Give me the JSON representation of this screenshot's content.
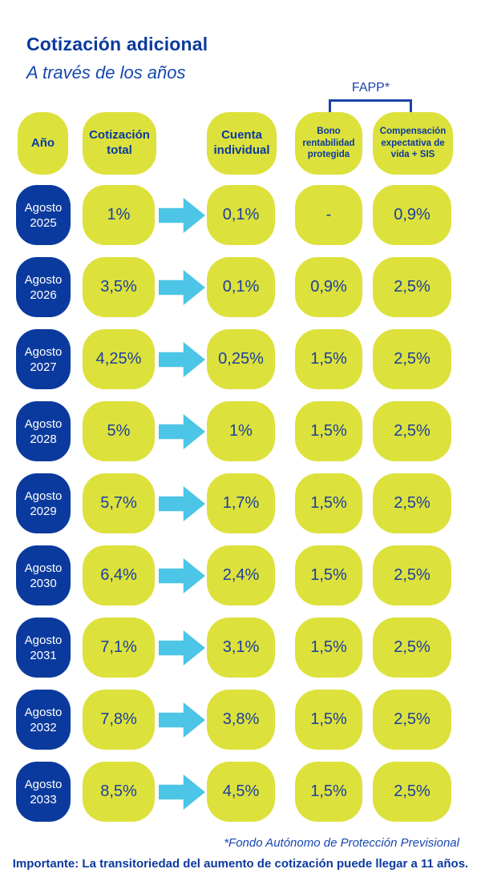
{
  "page": {
    "title": "Cotización adicional",
    "subtitle": "A través de los años",
    "fapp_label": "FAPP*",
    "footnote": "*Fondo Autónomo de Protección Previsional",
    "importante": "Importante: La transitoriedad del aumento de cotización puede llegar a 11 años."
  },
  "colors": {
    "brand_blue": "#0b3a9e",
    "value_blue": "#1a3fa0",
    "italic_blue": "#1747b0",
    "bracket_blue": "#1b43a8",
    "pill_yellow": "#dde13b",
    "arrow_cyan": "#4cc5e6",
    "year_text": "#ffffff",
    "background": "#ffffff"
  },
  "table": {
    "headers": [
      {
        "id": "ano",
        "label": "Año"
      },
      {
        "id": "cotizacion-total",
        "label": "Cotización total"
      },
      {
        "id": "cuenta-individual",
        "label": "Cuenta individual"
      },
      {
        "id": "bono-rentabilidad-protegida",
        "label": "Bono rentabilidad protegida"
      },
      {
        "id": "compensacion-expectativa",
        "label": "Compensación expectativa de vida + SIS"
      }
    ],
    "rows": [
      {
        "month": "Agosto",
        "year": "2025",
        "total": "1%",
        "cuenta": "0,1%",
        "bono": "-",
        "compensacion": "0,9%"
      },
      {
        "month": "Agosto",
        "year": "2026",
        "total": "3,5%",
        "cuenta": "0,1%",
        "bono": "0,9%",
        "compensacion": "2,5%"
      },
      {
        "month": "Agosto",
        "year": "2027",
        "total": "4,25%",
        "cuenta": "0,25%",
        "bono": "1,5%",
        "compensacion": "2,5%"
      },
      {
        "month": "Agosto",
        "year": "2028",
        "total": "5%",
        "cuenta": "1%",
        "bono": "1,5%",
        "compensacion": "2,5%"
      },
      {
        "month": "Agosto",
        "year": "2029",
        "total": "5,7%",
        "cuenta": "1,7%",
        "bono": "1,5%",
        "compensacion": "2,5%"
      },
      {
        "month": "Agosto",
        "year": "2030",
        "total": "6,4%",
        "cuenta": "2,4%",
        "bono": "1,5%",
        "compensacion": "2,5%"
      },
      {
        "month": "Agosto",
        "year": "2031",
        "total": "7,1%",
        "cuenta": "3,1%",
        "bono": "1,5%",
        "compensacion": "2,5%"
      },
      {
        "month": "Agosto",
        "year": "2032",
        "total": "7,8%",
        "cuenta": "3,8%",
        "bono": "1,5%",
        "compensacion": "2,5%"
      },
      {
        "month": "Agosto",
        "year": "2033",
        "total": "8,5%",
        "cuenta": "4,5%",
        "bono": "1,5%",
        "compensacion": "2,5%"
      }
    ]
  },
  "chart_data": {
    "type": "table",
    "title": "Cotización adicional",
    "subtitle": "A través de los años",
    "columns": [
      "Año",
      "Cotización total",
      "Cuenta individual",
      "Bono rentabilidad protegida (FAPP*)",
      "Compensación expectativa de vida + SIS (FAPP*)"
    ],
    "rows": [
      [
        "Agosto 2025",
        "1%",
        "0,1%",
        "-",
        "0,9%"
      ],
      [
        "Agosto 2026",
        "3,5%",
        "0,1%",
        "0,9%",
        "2,5%"
      ],
      [
        "Agosto 2027",
        "4,25%",
        "0,25%",
        "1,5%",
        "2,5%"
      ],
      [
        "Agosto 2028",
        "5%",
        "1%",
        "1,5%",
        "2,5%"
      ],
      [
        "Agosto 2029",
        "5,7%",
        "1,7%",
        "1,5%",
        "2,5%"
      ],
      [
        "Agosto 2030",
        "6,4%",
        "2,4%",
        "1,5%",
        "2,5%"
      ],
      [
        "Agosto 2031",
        "7,1%",
        "3,1%",
        "1,5%",
        "2,5%"
      ],
      [
        "Agosto 2032",
        "7,8%",
        "3,8%",
        "1,5%",
        "2,5%"
      ],
      [
        "Agosto 2033",
        "8,5%",
        "4,5%",
        "1,5%",
        "2,5%"
      ]
    ],
    "annotations": [
      "FAPP*",
      "*Fondo Autónomo de Protección Previsional",
      "Importante: La transitoriedad del aumento de cotización puede llegar a 11 años."
    ]
  }
}
